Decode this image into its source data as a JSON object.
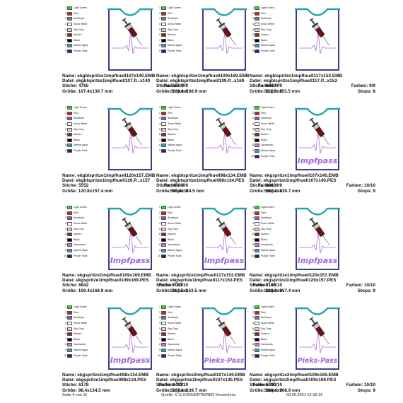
{
  "colors": {
    "light_green": "#22dd22",
    "red": "#e01818",
    "amethyst": "#9b59b6",
    "snow_white": "#ffffff",
    "sky_grey": "#d5d5d5",
    "auburn": "#8b2a16",
    "black": "#000000",
    "jacaranda": "#c878d8",
    "marine_aqua": "#2aa7b0",
    "purple_twist": "#2a1a8c",
    "frame_blue": "#1e2a7a",
    "collar_teal": "#22a3b0",
    "wave_purple": "#b06ad6",
    "text_purple": "#a463d8"
  },
  "cells": [
    {
      "legend": [
        {
          "n": "1",
          "label": "Light Green",
          "color": "#22dd22"
        },
        {
          "n": "2",
          "label": "Red",
          "color": "#e01818"
        },
        {
          "n": "3",
          "label": "Amethyst",
          "color": "#9b59b6"
        },
        {
          "n": "4",
          "label": "Snow White",
          "color": "#ffffff"
        },
        {
          "n": "5",
          "label": "Sky Grey",
          "color": "#d5d5d5"
        },
        {
          "n": "6",
          "label": "Auburn",
          "color": "#8b2a16"
        },
        {
          "n": "7",
          "label": "Black",
          "color": "#000000"
        },
        {
          "n": "8",
          "label": "Marine Aqua",
          "color": "#2aa7b0"
        },
        {
          "n": "9",
          "label": "Purple Twist",
          "color": "#2a1a8c"
        }
      ],
      "text": "",
      "name": "Name: ekgblspritze1impfhuell107x140.EMB",
      "datei": "Datei: ekgblspritze1impfhuell107.P...x140",
      "stiche": "Stiche: 4765",
      "farben": "Farben: 9/9",
      "groesse": "Größe: 107.4x139.7 mm",
      "stops": "Stops: 8"
    },
    {
      "legend": [
        {
          "n": "1",
          "label": "Light Green",
          "color": "#22dd22"
        },
        {
          "n": "2",
          "label": "Red",
          "color": "#e01818"
        },
        {
          "n": "3",
          "label": "Amethyst",
          "color": "#9b59b6"
        },
        {
          "n": "4",
          "label": "Snow White",
          "color": "#ffffff"
        },
        {
          "n": "5",
          "label": "Sky Grey",
          "color": "#d5d5d5"
        },
        {
          "n": "6",
          "label": "Auburn",
          "color": "#8b2a16"
        },
        {
          "n": "7",
          "label": "Black",
          "color": "#000000"
        },
        {
          "n": "8",
          "label": "Marine Aqua",
          "color": "#2aa7b0"
        },
        {
          "n": "9",
          "label": "Purple Twist",
          "color": "#2a1a8c"
        }
      ],
      "text": "",
      "name": "Name: ekgblspritze1impfhuell109x169.EMB",
      "datei": "Datei: ekgblspritze1impfhuell109.P...x169",
      "stiche": "Stiche: 5224",
      "farben": "Farben: 9/9",
      "groesse": "Größe: 109.4x168.9 mm",
      "stops": "Stops: 8"
    },
    {
      "legend": [
        {
          "n": "1",
          "label": "Light Green",
          "color": "#22dd22"
        },
        {
          "n": "2",
          "label": "Red",
          "color": "#e01818"
        },
        {
          "n": "3",
          "label": "Amethyst",
          "color": "#9b59b6"
        },
        {
          "n": "4",
          "label": "Snow White",
          "color": "#ffffff"
        },
        {
          "n": "5",
          "label": "Sky Grey",
          "color": "#d5d5d5"
        },
        {
          "n": "6",
          "label": "Auburn",
          "color": "#8b2a16"
        },
        {
          "n": "7",
          "label": "Black",
          "color": "#000000"
        },
        {
          "n": "8",
          "label": "Marine Aqua",
          "color": "#2aa7b0"
        },
        {
          "n": "9",
          "label": "Purple Twist",
          "color": "#2a1a8c"
        }
      ],
      "text": "",
      "name": "Name: ekgblspritze1impfhuell117x153.EMB",
      "datei": "Datei: ekgblspritze1impfhuell117.P...x153",
      "stiche": "Stiche: 6439",
      "farben": "Farben: 9/9",
      "groesse": "Größe: 117.5x153.5 mm",
      "stops": "Stops: 8"
    },
    {
      "legend": [
        {
          "n": "1",
          "label": "Light Green",
          "color": "#22dd22"
        },
        {
          "n": "2",
          "label": "Red",
          "color": "#e01818"
        },
        {
          "n": "3",
          "label": "Amethyst",
          "color": "#9b59b6"
        },
        {
          "n": "4",
          "label": "Snow White",
          "color": "#ffffff"
        },
        {
          "n": "5",
          "label": "Sky Grey",
          "color": "#d5d5d5"
        },
        {
          "n": "6",
          "label": "Auburn",
          "color": "#8b2a16"
        },
        {
          "n": "7",
          "label": "Black",
          "color": "#000000"
        },
        {
          "n": "8",
          "label": "Marine Aqua",
          "color": "#2aa7b0"
        },
        {
          "n": "9",
          "label": "Purple Twist",
          "color": "#2a1a8c"
        }
      ],
      "text": "",
      "name": "Name: ekgblspritze1impfhuell120x157.EMB",
      "datei": "Datei: ekgblspritze1impfhuell120.P...x157",
      "stiche": "Stiche: 5552",
      "farben": "Farben: 9/9",
      "groesse": "Größe: 120.8x157.4 mm",
      "stops": "Stops: 8"
    },
    {
      "legend": [
        {
          "n": "1",
          "label": "Light Green",
          "color": "#22dd22"
        },
        {
          "n": "2",
          "label": "Red",
          "color": "#e01818"
        },
        {
          "n": "3",
          "label": "Amethyst",
          "color": "#9b59b6"
        },
        {
          "n": "4",
          "label": "Snow White",
          "color": "#ffffff"
        },
        {
          "n": "5",
          "label": "Sky Grey",
          "color": "#d5d5d5"
        },
        {
          "n": "6",
          "label": "Auburn",
          "color": "#8b2a16"
        },
        {
          "n": "7",
          "label": "Black",
          "color": "#000000"
        },
        {
          "n": "8",
          "label": "Marine Aqua",
          "color": "#2aa7b0"
        },
        {
          "n": "9",
          "label": "Purple Twist",
          "color": "#2a1a8c"
        }
      ],
      "text": "",
      "name": "Name: ekgblspritze1impfhuell98x134.EMB",
      "datei": "Datei: ekgblspritze1impfhuell98x134.PES",
      "stiche": "Stiche: 4564",
      "farben": "Farben: 9/9",
      "groesse": "Größe: 98.4x134.5 mm",
      "stops": "Stops: 8"
    },
    {
      "legend": [
        {
          "n": "1",
          "label": "Light Green",
          "color": "#22dd22"
        },
        {
          "n": "2",
          "label": "Red",
          "color": "#e01818"
        },
        {
          "n": "3",
          "label": "Amethyst",
          "color": "#9b59b6"
        },
        {
          "n": "4",
          "label": "Snow White",
          "color": "#ffffff"
        },
        {
          "n": "5",
          "label": "Sky Grey",
          "color": "#d5d5d5"
        },
        {
          "n": "6",
          "label": "Auburn",
          "color": "#8b2a16"
        },
        {
          "n": "7",
          "label": "Black",
          "color": "#000000"
        },
        {
          "n": "8",
          "label": "Jacaranda",
          "color": "#c878d8"
        },
        {
          "n": "9",
          "label": "Marine Aqua",
          "color": "#2aa7b0"
        },
        {
          "n": "10",
          "label": "Purple Twist",
          "color": "#2a1a8c"
        }
      ],
      "text": "Impfpass",
      "name": "Name: ekgspritze1impfhuell107x140.EMB",
      "datei": "Datei: ekgspritze1impfhuell107x140.PES",
      "stiche": "Stiche: 8383",
      "farben": "Farben: 10/10",
      "groesse": "Größe: 107.4x139.7 mm",
      "stops": "Stops: 9"
    },
    {
      "legend": [
        {
          "n": "1",
          "label": "Light Green",
          "color": "#22dd22"
        },
        {
          "n": "2",
          "label": "Red",
          "color": "#e01818"
        },
        {
          "n": "3",
          "label": "Amethyst",
          "color": "#9b59b6"
        },
        {
          "n": "4",
          "label": "Snow White",
          "color": "#ffffff"
        },
        {
          "n": "5",
          "label": "Sky Grey",
          "color": "#d5d5d5"
        },
        {
          "n": "6",
          "label": "Auburn",
          "color": "#8b2a16"
        },
        {
          "n": "7",
          "label": "Black",
          "color": "#000000"
        },
        {
          "n": "8",
          "label": "Jacaranda",
          "color": "#c878d8"
        },
        {
          "n": "9",
          "label": "Marine Aqua",
          "color": "#2aa7b0"
        },
        {
          "n": "10",
          "label": "Purple Twist",
          "color": "#2a1a8c"
        }
      ],
      "text": "Impfpass",
      "name": "Name: ekgspritze1impfhuell109x169.EMB",
      "datei": "Datei: ekgspritze1impfhuell109x169.PES",
      "stiche": "Stiche: 6842",
      "farben": "Farben: 10/10",
      "groesse": "Größe: 109.4x168.9 mm",
      "stops": "Stops: 9"
    },
    {
      "legend": [
        {
          "n": "1",
          "label": "Light Green",
          "color": "#22dd22"
        },
        {
          "n": "2",
          "label": "Red",
          "color": "#e01818"
        },
        {
          "n": "3",
          "label": "Amethyst",
          "color": "#9b59b6"
        },
        {
          "n": "4",
          "label": "Snow White",
          "color": "#ffffff"
        },
        {
          "n": "5",
          "label": "Sky Grey",
          "color": "#d5d5d5"
        },
        {
          "n": "6",
          "label": "Auburn",
          "color": "#8b2a16"
        },
        {
          "n": "7",
          "label": "Black",
          "color": "#000000"
        },
        {
          "n": "8",
          "label": "Jacaranda",
          "color": "#c878d8"
        },
        {
          "n": "9",
          "label": "Marine Aqua",
          "color": "#2aa7b0"
        },
        {
          "n": "10",
          "label": "Purple Twist",
          "color": "#2a1a8c"
        }
      ],
      "text": "Impfpass",
      "name": "Name: ekgspritze1impfhuell117x153.EMB",
      "datei": "Datei: ekgspritze1impfhuell117x153.PES",
      "stiche": "Stiche: 7053",
      "farben": "Farben: 10/10",
      "groesse": "Größe: 117.5x153.5 mm",
      "stops": "Stops: 9"
    },
    {
      "legend": [
        {
          "n": "1",
          "label": "Light Green",
          "color": "#22dd22"
        },
        {
          "n": "2",
          "label": "Red",
          "color": "#e01818"
        },
        {
          "n": "3",
          "label": "Amethyst",
          "color": "#9b59b6"
        },
        {
          "n": "4",
          "label": "Snow White",
          "color": "#ffffff"
        },
        {
          "n": "5",
          "label": "Sky Grey",
          "color": "#d5d5d5"
        },
        {
          "n": "6",
          "label": "Auburn",
          "color": "#8b2a16"
        },
        {
          "n": "7",
          "label": "Black",
          "color": "#000000"
        },
        {
          "n": "8",
          "label": "Jacaranda",
          "color": "#c878d8"
        },
        {
          "n": "9",
          "label": "Marine Aqua",
          "color": "#2aa7b0"
        },
        {
          "n": "10",
          "label": "Purple Twist",
          "color": "#2a1a8c"
        }
      ],
      "text": "Impfpass",
      "name": "Name: ekgspritze1impfhuell120x157.EMB",
      "datei": "Datei: ekgspritze1impfhuell120x157.PES",
      "stiche": "Stiche: 7166",
      "farben": "Farben: 10/10",
      "groesse": "Größe: 120.8x157.4 mm",
      "stops": "Stops: 9"
    },
    {
      "legend": [
        {
          "n": "1",
          "label": "Light Green",
          "color": "#22dd22"
        },
        {
          "n": "2",
          "label": "Red",
          "color": "#e01818"
        },
        {
          "n": "3",
          "label": "Amethyst",
          "color": "#9b59b6"
        },
        {
          "n": "4",
          "label": "Snow White",
          "color": "#ffffff"
        },
        {
          "n": "5",
          "label": "Sky Grey",
          "color": "#d5d5d5"
        },
        {
          "n": "6",
          "label": "Auburn",
          "color": "#8b2a16"
        },
        {
          "n": "7",
          "label": "Black",
          "color": "#000000"
        },
        {
          "n": "8",
          "label": "Jacaranda",
          "color": "#c878d8"
        },
        {
          "n": "9",
          "label": "Marine Aqua",
          "color": "#2aa7b0"
        },
        {
          "n": "10",
          "label": "Purple Twist",
          "color": "#2a1a8c"
        }
      ],
      "text": "Impfpass",
      "name": "Name: ekgspritze1impfhuell98x134.EMB",
      "datei": "Datei: ekgspritze1impfhuell98x134.PES",
      "stiche": "Stiche: 6178",
      "farben": "Farben: 10/10",
      "groesse": "Größe: 98.4x134.5 mm",
      "stops": "Stops: 9"
    },
    {
      "legend": [
        {
          "n": "1",
          "label": "Light Green",
          "color": "#22dd22"
        },
        {
          "n": "2",
          "label": "Red",
          "color": "#e01818"
        },
        {
          "n": "3",
          "label": "Amethyst",
          "color": "#9b59b6"
        },
        {
          "n": "4",
          "label": "Snow White",
          "color": "#ffffff"
        },
        {
          "n": "5",
          "label": "Sky Grey",
          "color": "#d5d5d5"
        },
        {
          "n": "6",
          "label": "Auburn",
          "color": "#8b2a16"
        },
        {
          "n": "7",
          "label": "Black",
          "color": "#000000"
        },
        {
          "n": "8",
          "label": "Jacaranda",
          "color": "#c878d8"
        },
        {
          "n": "9",
          "label": "Marine Aqua",
          "color": "#2aa7b0"
        },
        {
          "n": "10",
          "label": "Purple Twist",
          "color": "#2a1a8c"
        }
      ],
      "text": "Pieks-Pass",
      "name": "Name: ekgspritze2impfhuell107x140.EMB",
      "datei": "Datei: ekgspritze2impfhuell107x140.PES",
      "stiche": "Stiche: 6432",
      "farben": "Farben: 10/10",
      "groesse": "Größe: 107.4x139.7 mm",
      "stops": "Stops: 9"
    },
    {
      "legend": [
        {
          "n": "1",
          "label": "Light Green",
          "color": "#22dd22"
        },
        {
          "n": "2",
          "label": "Red",
          "color": "#e01818"
        },
        {
          "n": "3",
          "label": "Amethyst",
          "color": "#9b59b6"
        },
        {
          "n": "4",
          "label": "Snow White",
          "color": "#ffffff"
        },
        {
          "n": "5",
          "label": "Sky Grey",
          "color": "#d5d5d5"
        },
        {
          "n": "6",
          "label": "Auburn",
          "color": "#8b2a16"
        },
        {
          "n": "7",
          "label": "Black",
          "color": "#000000"
        },
        {
          "n": "8",
          "label": "Jacaranda",
          "color": "#c878d8"
        },
        {
          "n": "9",
          "label": "Marine Aqua",
          "color": "#2aa7b0"
        },
        {
          "n": "10",
          "label": "Purple Twist",
          "color": "#2a1a8c"
        }
      ],
      "text": "Pieks-Pass",
      "name": "Name: ekgspritze2impfhuell109x169.EMB",
      "datei": "Datei: ekgspritze2impfhuell109x169.PES",
      "stiche": "Stiche: 6890",
      "farben": "Farben: 10/10",
      "groesse": "Größe: 109.4x168.9 mm",
      "stops": "Stops: 9"
    }
  ],
  "footer": {
    "page": "Seite 4 von 11",
    "source": "Quelle: C:\\1 KONVERTIEREN Verzeichnis",
    "datetime": "03.05.2021 12:32:15"
  }
}
